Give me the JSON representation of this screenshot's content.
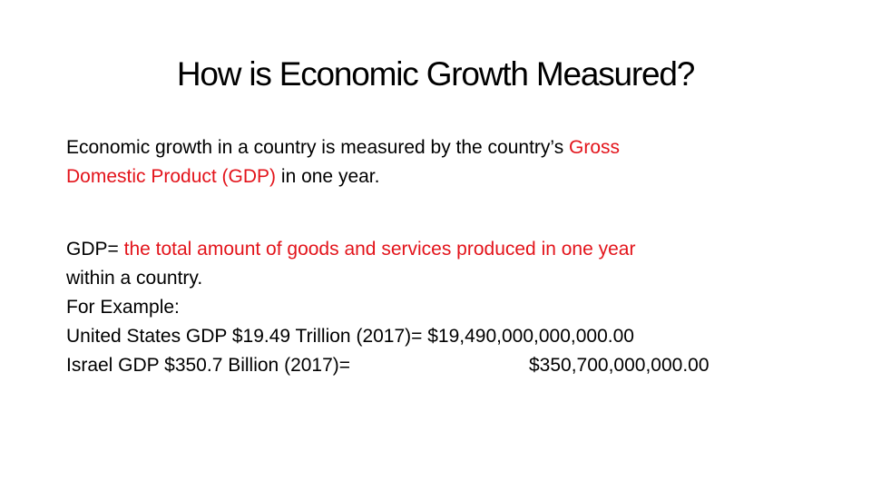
{
  "slide": {
    "title": "How is Economic Growth Measured?",
    "paragraph1": {
      "line1_black": "Economic growth in a country is measured by the country’s ",
      "line1_red": "Gross",
      "line2_red": "Domestic Product (GDP)",
      "line2_black": " in one year."
    },
    "paragraph2": {
      "line1_black": "GDP= ",
      "line1_red": "the total amount of goods and services produced in one year",
      "line2_black": "within a country."
    },
    "example_label": "For Example:",
    "us_line": "United States GDP $19.49 Trillion (2017)= $19,490,000,000,000.00",
    "israel_label": "Israel GDP $350.7 Billion (2017)=",
    "israel_value": "$350,700,000,000.00",
    "colors": {
      "text": "#000000",
      "accent_red": "#e3141b",
      "background": "#ffffff"
    }
  }
}
